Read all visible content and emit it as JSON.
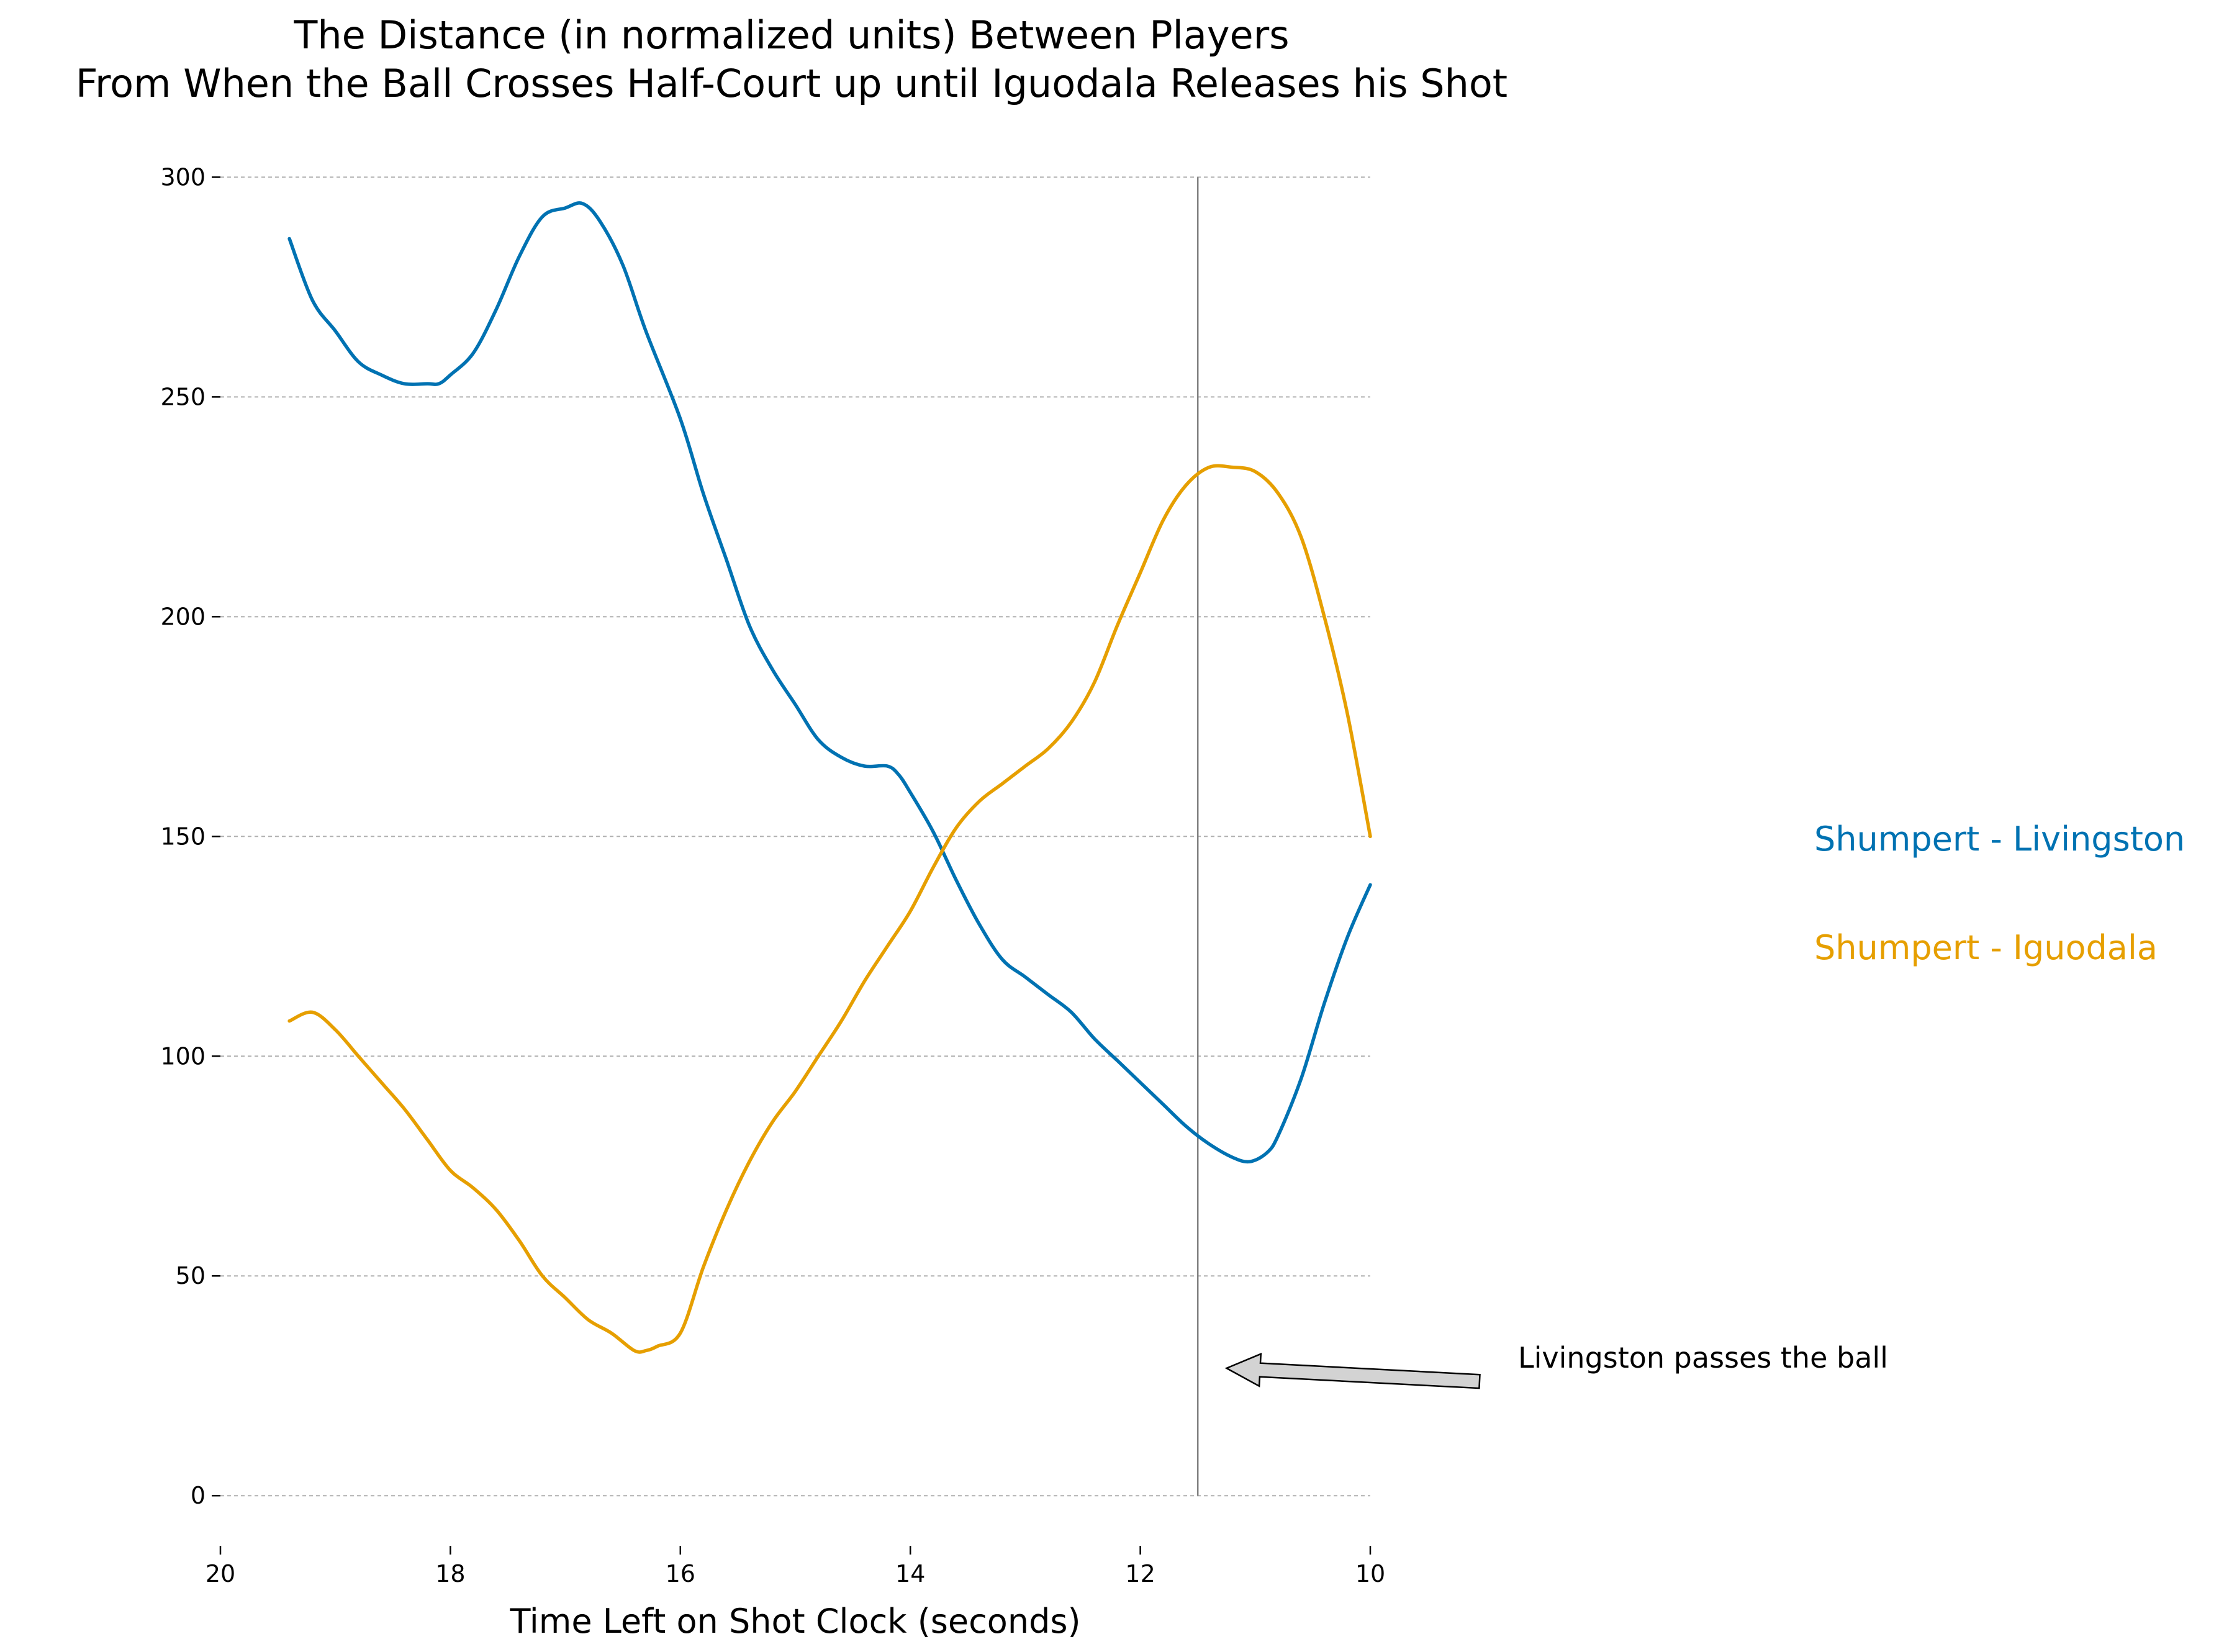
{
  "chart_data": {
    "type": "line",
    "title": "The Distance (in normalized units) Between Players\nFrom When the Ball Crosses Half-Court up until Iguodala Releases his Shot",
    "xlabel": "Time Left on Shot Clock (seconds)",
    "ylabel": "",
    "xlim": [
      20,
      10
    ],
    "ylim": [
      -10,
      305
    ],
    "x_inverted": true,
    "xticks": [
      20,
      18,
      16,
      14,
      12,
      10
    ],
    "yticks": [
      0,
      50,
      100,
      150,
      200,
      250,
      300
    ],
    "grid": "horizontal-dashed",
    "legend": "right",
    "series": [
      {
        "name": "Shumpert - Livingston",
        "color": "#0072b2",
        "x": [
          19.4,
          19.2,
          19.0,
          18.8,
          18.6,
          18.4,
          18.2,
          18.1,
          18.0,
          17.8,
          17.6,
          17.4,
          17.2,
          17.0,
          16.85,
          16.7,
          16.5,
          16.3,
          16.0,
          15.8,
          15.6,
          15.4,
          15.2,
          15.0,
          14.8,
          14.6,
          14.4,
          14.2,
          14.1,
          14.0,
          13.8,
          13.6,
          13.4,
          13.2,
          13.0,
          12.8,
          12.6,
          12.4,
          12.2,
          12.0,
          11.8,
          11.6,
          11.4,
          11.2,
          11.05,
          10.9,
          10.8,
          10.6,
          10.4,
          10.2,
          10.0
        ],
        "y": [
          286,
          272,
          265,
          258,
          255,
          253,
          253,
          253,
          255,
          260,
          270,
          282,
          291,
          293,
          294,
          290,
          280,
          265,
          245,
          228,
          213,
          198,
          188,
          180,
          172,
          168,
          166,
          166,
          164,
          160,
          151,
          140,
          130,
          122,
          118,
          114,
          110,
          104,
          99,
          94,
          89,
          84,
          80,
          77,
          76,
          78,
          82,
          95,
          112,
          127,
          139
        ]
      },
      {
        "name": "Shumpert - Iguodala",
        "color": "#e69f00",
        "x": [
          19.4,
          19.2,
          19.0,
          18.8,
          18.6,
          18.4,
          18.2,
          18.0,
          17.8,
          17.6,
          17.4,
          17.2,
          17.0,
          16.8,
          16.6,
          16.4,
          16.3,
          16.2,
          16.0,
          15.8,
          15.6,
          15.4,
          15.2,
          15.0,
          14.8,
          14.6,
          14.4,
          14.2,
          14.0,
          13.8,
          13.6,
          13.4,
          13.2,
          13.0,
          12.8,
          12.6,
          12.4,
          12.2,
          12.0,
          11.8,
          11.6,
          11.4,
          11.2,
          11.0,
          10.8,
          10.6,
          10.4,
          10.2,
          10.0
        ],
        "y": [
          108,
          110,
          106,
          100,
          94,
          88,
          81,
          74,
          70,
          65,
          58,
          50,
          45,
          40,
          37,
          33,
          33,
          34,
          37,
          52,
          65,
          76,
          85,
          92,
          100,
          108,
          117,
          125,
          133,
          143,
          152,
          158,
          162,
          166,
          170,
          176,
          185,
          198,
          210,
          222,
          230,
          234,
          234,
          233,
          228,
          218,
          200,
          178,
          150
        ]
      }
    ],
    "vline": {
      "x": 11.5,
      "color": "#808080"
    },
    "annotation": {
      "text": "Livingston passes the ball",
      "arrow_tail": [
        9.05,
        26
      ],
      "arrow_head": [
        11.25,
        29
      ]
    }
  }
}
